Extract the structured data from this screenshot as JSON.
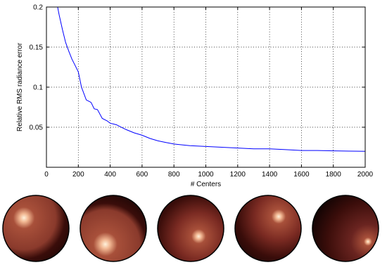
{
  "chart_data": {
    "type": "line",
    "title": "",
    "xlabel": "# Centers",
    "ylabel": "Relative RMS radiance error",
    "xlim": [
      0,
      2000
    ],
    "ylim": [
      0,
      0.2
    ],
    "grid": true,
    "x_ticks": [
      0,
      200,
      400,
      600,
      800,
      1000,
      1200,
      1400,
      1600,
      1800,
      2000
    ],
    "y_ticks": [
      0,
      0.05,
      0.1,
      0.15,
      0.2
    ],
    "y_tick_labels": [
      "",
      "0.05",
      "0.1",
      "0.15",
      "0.2"
    ],
    "line_color": "#0000ff",
    "series": [
      {
        "x": [
          70,
          80,
          100,
          120,
          140,
          160,
          180,
          200,
          220,
          250,
          280,
          300,
          320,
          350,
          380,
          400,
          420,
          440,
          460,
          500,
          550,
          600,
          650,
          700,
          750,
          800,
          900,
          1000,
          1100,
          1200,
          1300,
          1400,
          1500,
          1600,
          1700,
          1800,
          1900,
          2000
        ],
        "y": [
          0.2,
          0.19,
          0.172,
          0.156,
          0.145,
          0.135,
          0.127,
          0.119,
          0.1,
          0.084,
          0.081,
          0.073,
          0.072,
          0.061,
          0.058,
          0.055,
          0.054,
          0.053,
          0.051,
          0.047,
          0.043,
          0.04,
          0.036,
          0.033,
          0.031,
          0.029,
          0.027,
          0.026,
          0.025,
          0.024,
          0.023,
          0.023,
          0.022,
          0.021,
          0.021,
          0.0205,
          0.0202,
          0.02
        ]
      }
    ]
  },
  "spheres": [
    {
      "hx": 0.32,
      "hy": 0.34,
      "size": 0.18,
      "tint": "#8a3a2c"
    },
    {
      "hx": 0.38,
      "hy": 0.74,
      "size": 0.2,
      "tint": "#8a3a2c"
    },
    {
      "hx": 0.62,
      "hy": 0.62,
      "size": 0.12,
      "tint": "#7a2a22"
    },
    {
      "hx": 0.66,
      "hy": 0.32,
      "size": 0.12,
      "tint": "#7a2a22"
    },
    {
      "hx": 0.84,
      "hy": 0.7,
      "size": 0.07,
      "tint": "#6a2420"
    }
  ]
}
